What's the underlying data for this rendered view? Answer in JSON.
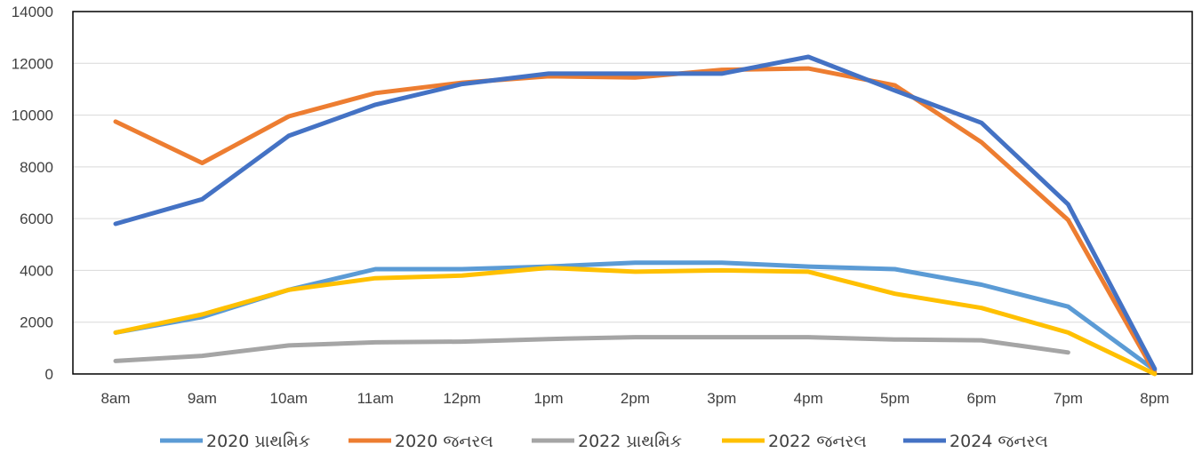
{
  "chart_data": {
    "type": "line",
    "x": [
      "8am",
      "9am",
      "10am",
      "11am",
      "12pm",
      "1pm",
      "2pm",
      "3pm",
      "4pm",
      "5pm",
      "6pm",
      "7pm",
      "8pm"
    ],
    "ylim": [
      0,
      14000
    ],
    "yticks": [
      "0",
      "2000",
      "4000",
      "6000",
      "8000",
      "10000",
      "12000",
      "14000"
    ],
    "grid": true,
    "legend_position": "bottom",
    "series": [
      {
        "name": "2020 પ્રાથમિક",
        "color": "#5b9bd5",
        "values": [
          1600,
          2200,
          3250,
          4050,
          4050,
          4150,
          4300,
          4300,
          4150,
          4050,
          3450,
          2600,
          150
        ]
      },
      {
        "name": "2020 જનરલ",
        "color": "#ed7d31",
        "values": [
          9750,
          8150,
          9950,
          10850,
          11250,
          11500,
          11450,
          11750,
          11800,
          11150,
          8950,
          5950,
          50
        ]
      },
      {
        "name": "2022 પ્રાથમિક",
        "color": "#a5a5a5",
        "values": [
          500,
          700,
          1100,
          1220,
          1250,
          1350,
          1420,
          1420,
          1420,
          1330,
          1300,
          830,
          null
        ]
      },
      {
        "name": "2022 જનરલ",
        "color": "#ffc000",
        "values": [
          1600,
          2300,
          3250,
          3700,
          3800,
          4100,
          3950,
          4000,
          3950,
          3100,
          2550,
          1600,
          0
        ]
      },
      {
        "name": "2024 જનરલ",
        "color": "#4472c4",
        "values": [
          5800,
          6750,
          9200,
          10400,
          11200,
          11600,
          11600,
          11600,
          12250,
          10950,
          9700,
          6550,
          200
        ]
      }
    ]
  }
}
